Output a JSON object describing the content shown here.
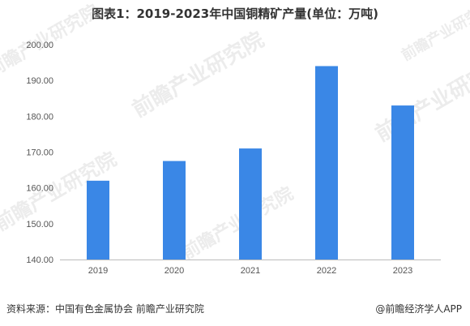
{
  "title": "图表1：2019-2023年中国铜精矿产量(单位：万吨)",
  "footer": {
    "source": "资料来源：中国有色金属协会 前瞻产业研究院",
    "credit": "@前瞻经济学人APP"
  },
  "watermark": "前瞻产业研究院",
  "colors": {
    "bar": "#3a87e6",
    "axis": "#bbbbbb"
  },
  "chart_data": {
    "type": "bar",
    "categories": [
      "2019",
      "2020",
      "2021",
      "2022",
      "2023"
    ],
    "values": [
      162,
      167.5,
      171,
      194,
      183
    ],
    "ylim": [
      140,
      200
    ],
    "yticks": [
      "140.00",
      "150.00",
      "160.00",
      "170.00",
      "180.00",
      "190.00",
      "200.00"
    ],
    "grid": false
  }
}
